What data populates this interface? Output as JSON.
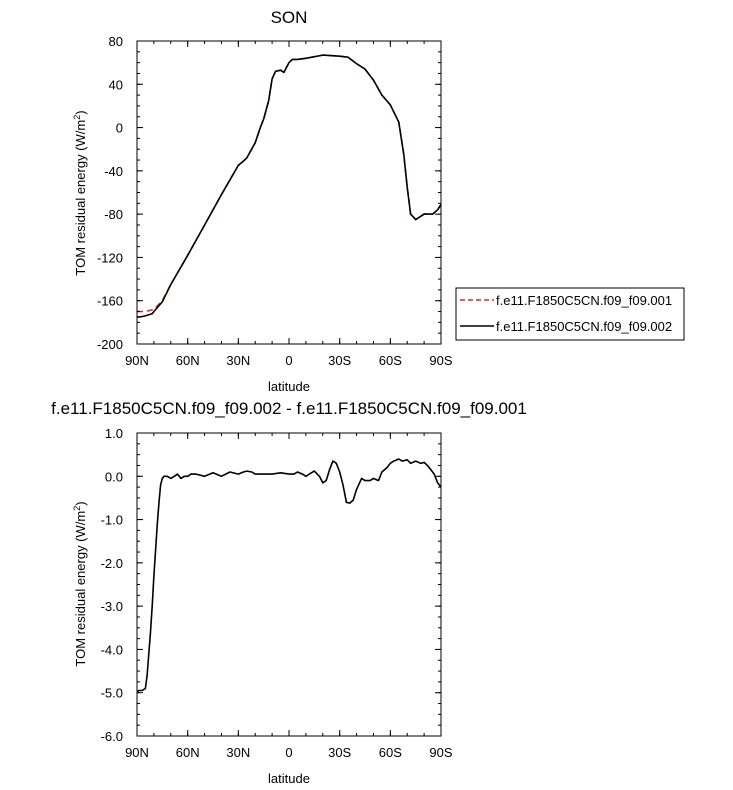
{
  "chart_data": [
    {
      "type": "line",
      "title": "SON",
      "xlabel": "latitude",
      "ylabel": "TOM residual energy (W/m",
      "ylabel_sup": "2",
      "ylabel_end": ")",
      "xlim": [
        90,
        -90
      ],
      "ylim": [
        -200,
        80
      ],
      "xticks": [
        {
          "value": 90,
          "label": "90N"
        },
        {
          "value": 60,
          "label": "60N"
        },
        {
          "value": 30,
          "label": "30N"
        },
        {
          "value": 0,
          "label": "0"
        },
        {
          "value": -30,
          "label": "30S"
        },
        {
          "value": -60,
          "label": "60S"
        },
        {
          "value": -90,
          "label": "90S"
        }
      ],
      "yticks": [
        {
          "value": 80,
          "label": "80"
        },
        {
          "value": 40,
          "label": "40"
        },
        {
          "value": 0,
          "label": "0"
        },
        {
          "value": -40,
          "label": "-40"
        },
        {
          "value": -80,
          "label": "-80"
        },
        {
          "value": -120,
          "label": "-120"
        },
        {
          "value": -160,
          "label": "-160"
        },
        {
          "value": -200,
          "label": "-200"
        }
      ],
      "legend": {
        "placement": "right",
        "entries": [
          {
            "label": "f.e11.F1850C5CN.f09_f09.001",
            "color": "#e8252a",
            "dash": true
          },
          {
            "label": "f.e11.F1850C5CN.f09_f09.002",
            "color": "#000000",
            "dash": false
          }
        ]
      },
      "series": [
        {
          "name": "f.e11.F1850C5CN.f09_f09.001",
          "color": "#e8252a",
          "dash": true,
          "x": [
            90,
            85,
            80,
            75,
            70,
            60,
            50,
            40,
            30,
            27,
            25,
            20,
            17,
            15,
            12,
            10,
            8,
            5,
            3,
            0,
            -2,
            -5,
            -10,
            -20,
            -30,
            -35,
            -40,
            -45,
            -50,
            -55,
            -60,
            -65,
            -68,
            -70,
            -72,
            -75,
            -80,
            -85,
            -88,
            -90
          ],
          "y": [
            -170,
            -170,
            -168,
            -160,
            -145,
            -118,
            -90,
            -62,
            -35,
            -31,
            -28,
            -14,
            0,
            8,
            25,
            45,
            52,
            53,
            51,
            60,
            63,
            63,
            64,
            67,
            66,
            65,
            59,
            54,
            44,
            30,
            21,
            5,
            -25,
            -55,
            -80,
            -85,
            -80,
            -80,
            -76,
            -71
          ]
        },
        {
          "name": "f.e11.F1850C5CN.f09_f09.002",
          "color": "#000000",
          "dash": false,
          "x": [
            90,
            88,
            85,
            83,
            81,
            80,
            75,
            70,
            60,
            50,
            40,
            30,
            27,
            25,
            20,
            17,
            15,
            12,
            10,
            8,
            5,
            3,
            0,
            -2,
            -5,
            -10,
            -20,
            -30,
            -35,
            -40,
            -45,
            -50,
            -55,
            -60,
            -65,
            -68,
            -70,
            -72,
            -75,
            -80,
            -85,
            -88,
            -90
          ],
          "y": [
            -175,
            -175,
            -174,
            -173,
            -172,
            -170,
            -161,
            -145,
            -118,
            -90,
            -62,
            -35,
            -31,
            -28,
            -14,
            0,
            8,
            25,
            45,
            52,
            53,
            51,
            60,
            63,
            63,
            64,
            67,
            66,
            65,
            59,
            54,
            44,
            30,
            21,
            5,
            -25,
            -55,
            -80,
            -85,
            -80,
            -80,
            -76,
            -71
          ]
        }
      ]
    },
    {
      "type": "line",
      "title": "f.e11.F1850C5CN.f09_f09.002 - f.e11.F1850C5CN.f09_f09.001",
      "xlabel": "latitude",
      "ylabel": "TOM residual energy (W/m",
      "ylabel_sup": "2",
      "ylabel_end": ")",
      "xlim": [
        90,
        -90
      ],
      "ylim": [
        -6.0,
        1.0
      ],
      "xticks": [
        {
          "value": 90,
          "label": "90N"
        },
        {
          "value": 60,
          "label": "60N"
        },
        {
          "value": 30,
          "label": "30N"
        },
        {
          "value": 0,
          "label": "0"
        },
        {
          "value": -30,
          "label": "30S"
        },
        {
          "value": -60,
          "label": "60S"
        },
        {
          "value": -90,
          "label": "90S"
        }
      ],
      "yticks": [
        {
          "value": 1.0,
          "label": "1.0"
        },
        {
          "value": 0.0,
          "label": "0.0"
        },
        {
          "value": -1.0,
          "label": "-1.0"
        },
        {
          "value": -2.0,
          "label": "-2.0"
        },
        {
          "value": -3.0,
          "label": "-3.0"
        },
        {
          "value": -4.0,
          "label": "-4.0"
        },
        {
          "value": -5.0,
          "label": "-5.0"
        },
        {
          "value": -6.0,
          "label": "-6.0"
        }
      ],
      "series": [
        {
          "name": "",
          "color": "#000000",
          "dash": false,
          "x": [
            90,
            89,
            87,
            85,
            84,
            83,
            82,
            81,
            80,
            79,
            78,
            77,
            76,
            75,
            74,
            72,
            70,
            68,
            66,
            64,
            62,
            60,
            58,
            55,
            50,
            45,
            40,
            35,
            30,
            27,
            25,
            22,
            20,
            15,
            10,
            5,
            0,
            -3,
            -5,
            -8,
            -10,
            -12,
            -15,
            -18,
            -20,
            -22,
            -24,
            -26,
            -28,
            -30,
            -32,
            -34,
            -36,
            -38,
            -40,
            -43,
            -45,
            -48,
            -50,
            -53,
            -55,
            -58,
            -60,
            -62,
            -65,
            -67,
            -70,
            -72,
            -75,
            -78,
            -80,
            -82,
            -84,
            -86,
            -88,
            -90
          ],
          "y": [
            -5.0,
            -4.95,
            -4.95,
            -4.9,
            -4.6,
            -4.1,
            -3.6,
            -3.0,
            -2.3,
            -1.7,
            -1.1,
            -0.6,
            -0.2,
            -0.05,
            0.0,
            0.0,
            -0.05,
            0.0,
            0.05,
            -0.05,
            0.0,
            0.0,
            0.05,
            0.05,
            0.0,
            0.08,
            0.0,
            0.1,
            0.05,
            0.1,
            0.12,
            0.1,
            0.05,
            0.05,
            0.05,
            0.08,
            0.05,
            0.05,
            0.1,
            0.05,
            0.0,
            0.05,
            0.12,
            0.0,
            -0.15,
            -0.1,
            0.15,
            0.35,
            0.3,
            0.1,
            -0.2,
            -0.6,
            -0.62,
            -0.55,
            -0.3,
            -0.05,
            -0.1,
            -0.1,
            -0.05,
            -0.1,
            0.1,
            0.2,
            0.3,
            0.35,
            0.4,
            0.35,
            0.38,
            0.3,
            0.35,
            0.3,
            0.32,
            0.25,
            0.15,
            0.05,
            -0.15,
            -0.25
          ]
        }
      ]
    }
  ]
}
